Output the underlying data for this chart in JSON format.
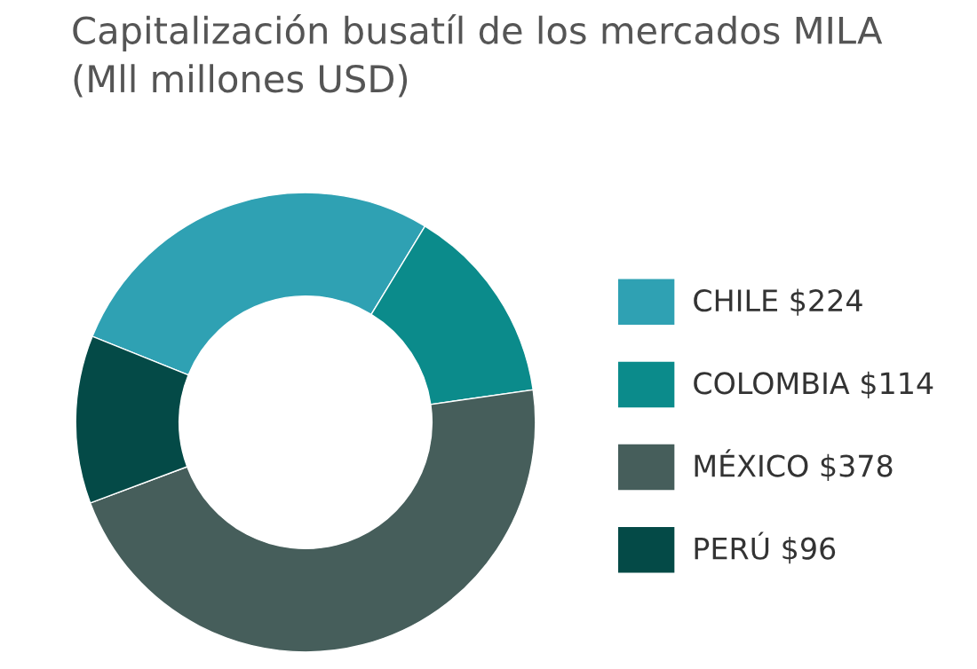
{
  "chart_data": {
    "type": "donut",
    "title": "Capitalización busatíl de los mercados MILA\n(Mll millones USD)",
    "categories": [
      "CHILE",
      "COLOMBIA",
      "MÉXICO",
      "PERÚ"
    ],
    "values": [
      224,
      114,
      378,
      96
    ],
    "value_labels": [
      "$224",
      "$114",
      "$378",
      "$96"
    ],
    "colors": [
      "#2fa1b3",
      "#0b8b8b",
      "#465e5b",
      "#044a47"
    ],
    "legend": "right"
  }
}
